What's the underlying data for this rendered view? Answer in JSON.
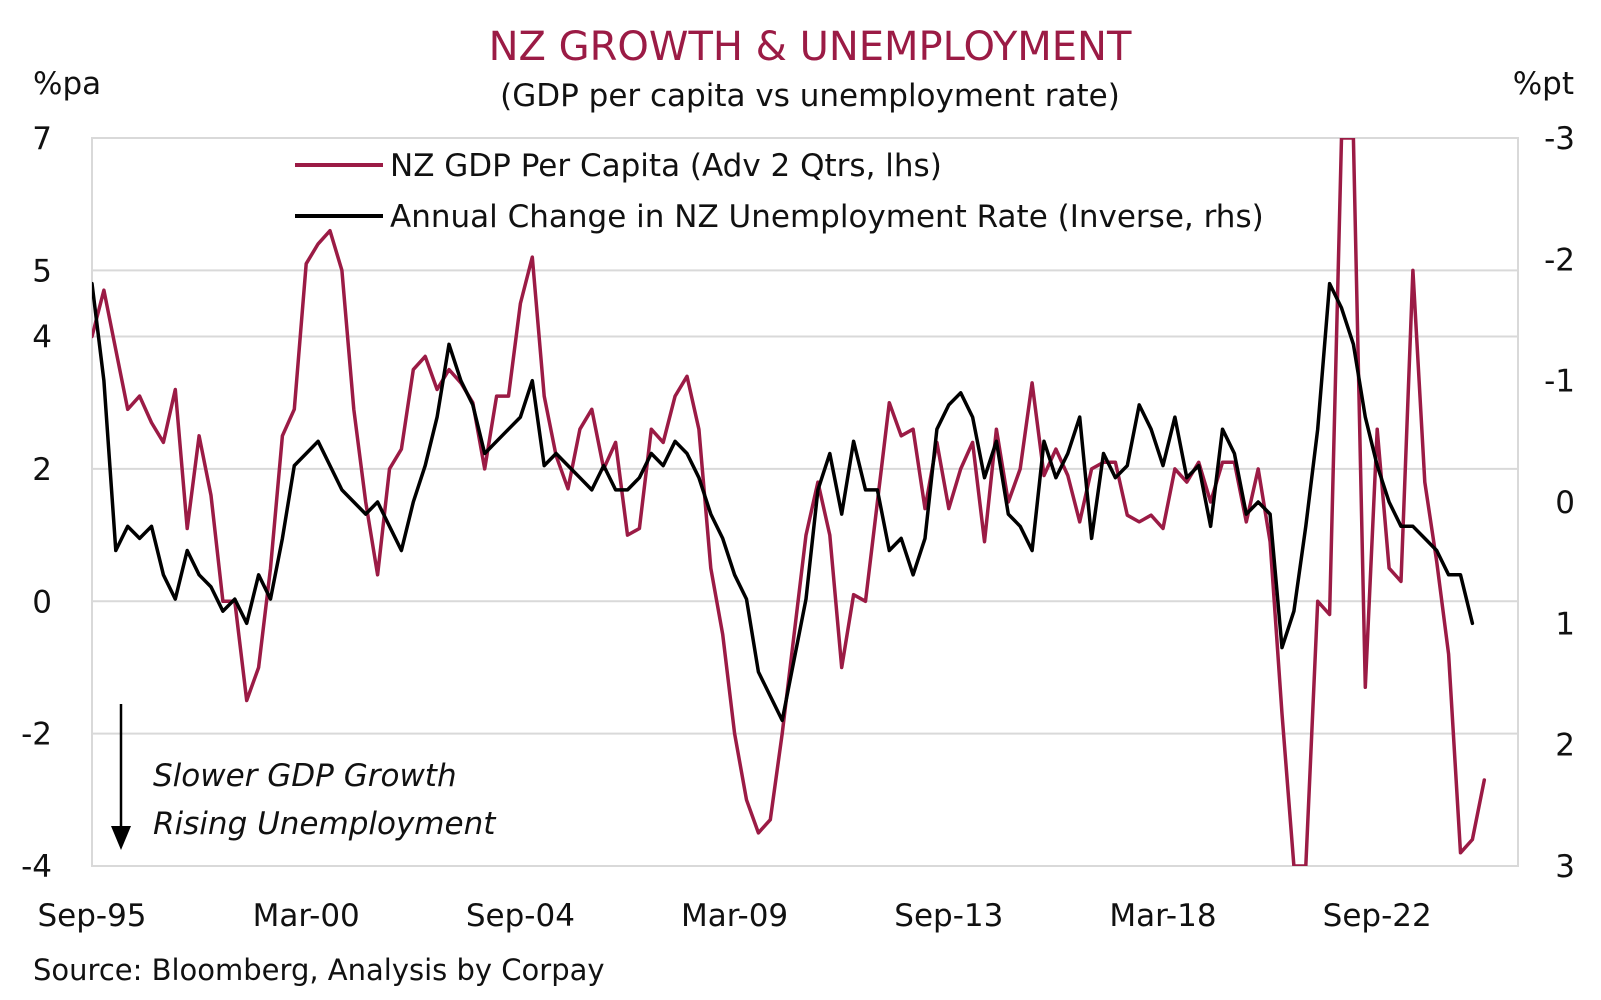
{
  "chart_data": {
    "type": "line",
    "title": "NZ GROWTH & UNEMPLOYMENT",
    "subtitle": "(GDP per capita vs unemployment rate)",
    "ylabel_left": "%pa",
    "ylabel_right": "%pt",
    "source": "Source: Bloomberg, Analysis by Corpay",
    "annotation": [
      "Slower GDP Growth",
      "Rising Unemployment"
    ],
    "x_labels": [
      "Sep-95",
      "Mar-00",
      "Sep-04",
      "Mar-09",
      "Sep-13",
      "Mar-18",
      "Sep-22"
    ],
    "x_label_quarter_index": [
      0,
      18,
      36,
      54,
      72,
      90,
      108
    ],
    "ylim_left": [
      -4,
      7
    ],
    "yticks_left": [
      7,
      5,
      4,
      2,
      0,
      -2,
      -4
    ],
    "ylim_right": [
      -3,
      3
    ],
    "yticks_right": [
      -3,
      -2,
      -1,
      0,
      1,
      2,
      3
    ],
    "right_axis_inverted": true,
    "grid": "horizontal",
    "legend_position": "top-center",
    "series": [
      {
        "name": "NZ GDP Per Capita (Adv 2 Qtrs, lhs)",
        "axis": "left",
        "color": "#9b1b45",
        "start": "Sep-95",
        "frequency": "quarterly",
        "values": [
          4.0,
          4.7,
          3.8,
          2.9,
          3.1,
          2.7,
          2.4,
          3.2,
          1.1,
          2.5,
          1.6,
          0.0,
          0.0,
          -1.5,
          -1.0,
          0.5,
          2.5,
          2.9,
          5.1,
          5.4,
          5.6,
          5.0,
          2.9,
          1.5,
          0.4,
          2.0,
          2.3,
          3.5,
          3.7,
          3.2,
          3.5,
          3.3,
          3.0,
          2.0,
          3.1,
          3.1,
          4.5,
          5.2,
          3.1,
          2.2,
          1.7,
          2.6,
          2.9,
          2.0,
          2.4,
          1.0,
          1.1,
          2.6,
          2.4,
          3.1,
          3.4,
          2.6,
          0.5,
          -0.5,
          -2.0,
          -3.0,
          -3.5,
          -3.3,
          -2.0,
          -0.5,
          1.0,
          1.8,
          1.0,
          -1.0,
          0.1,
          0.0,
          1.5,
          3.0,
          2.5,
          2.6,
          1.4,
          2.4,
          1.4,
          2.0,
          2.4,
          0.9,
          2.6,
          1.5,
          2.0,
          3.3,
          1.9,
          2.3,
          1.9,
          1.2,
          2.0,
          2.1,
          2.1,
          1.3,
          1.2,
          1.3,
          1.1,
          2.0,
          1.8,
          2.1,
          1.5,
          2.1,
          2.1,
          1.2,
          2.0,
          0.9,
          -1.7,
          -4.0,
          -4.0,
          0.0,
          -0.2,
          7.0,
          7.0,
          -1.3,
          2.6,
          0.5,
          0.3,
          5.0,
          1.8,
          0.6,
          -0.8,
          -3.8,
          -3.6,
          -2.7
        ]
      },
      {
        "name": "Annual Change in NZ Unemployment Rate (Inverse, rhs)",
        "axis": "right",
        "color": "#000000",
        "start": "Sep-95",
        "frequency": "quarterly",
        "values": [
          -1.8,
          -1.0,
          0.4,
          0.2,
          0.3,
          0.2,
          0.6,
          0.8,
          0.4,
          0.6,
          0.7,
          0.9,
          0.8,
          1.0,
          0.6,
          0.8,
          0.3,
          -0.3,
          -0.4,
          -0.5,
          -0.3,
          -0.1,
          0.0,
          0.1,
          0.0,
          0.2,
          0.4,
          0.0,
          -0.3,
          -0.7,
          -1.3,
          -1.0,
          -0.8,
          -0.4,
          -0.5,
          -0.6,
          -0.7,
          -1.0,
          -0.3,
          -0.4,
          -0.3,
          -0.2,
          -0.1,
          -0.3,
          -0.1,
          -0.1,
          -0.2,
          -0.4,
          -0.3,
          -0.5,
          -0.4,
          -0.2,
          0.1,
          0.3,
          0.6,
          0.8,
          1.4,
          1.6,
          1.8,
          1.3,
          0.8,
          -0.1,
          -0.4,
          0.1,
          -0.5,
          -0.1,
          -0.1,
          0.4,
          0.3,
          0.6,
          0.3,
          -0.6,
          -0.8,
          -0.9,
          -0.7,
          -0.2,
          -0.5,
          0.1,
          0.2,
          0.4,
          -0.5,
          -0.2,
          -0.4,
          -0.7,
          0.3,
          -0.4,
          -0.2,
          -0.3,
          -0.8,
          -0.6,
          -0.3,
          -0.7,
          -0.2,
          -0.3,
          0.2,
          -0.6,
          -0.4,
          0.1,
          0.0,
          0.1,
          1.2,
          0.9,
          0.2,
          -0.6,
          -1.8,
          -1.6,
          -1.3,
          -0.7,
          -0.3,
          0.0,
          0.2,
          0.2,
          0.3,
          0.4,
          0.6,
          0.6,
          1.0
        ]
      }
    ]
  }
}
